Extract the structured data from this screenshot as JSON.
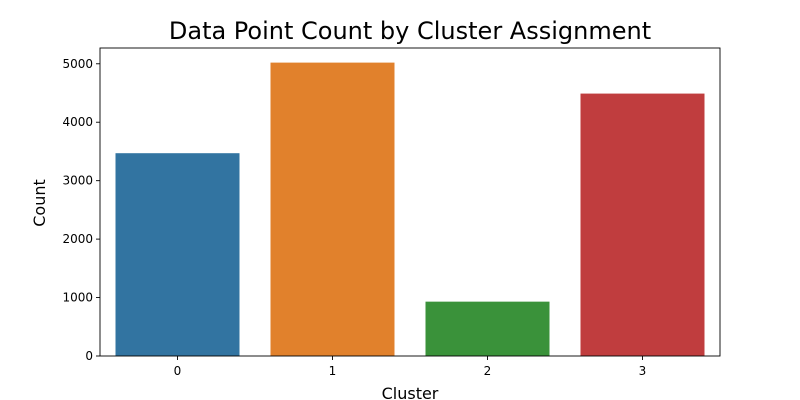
{
  "chart_data": {
    "type": "bar",
    "title": "Data Point Count by Cluster Assignment",
    "xlabel": "Cluster",
    "ylabel": "Count",
    "categories": [
      "0",
      "1",
      "2",
      "3"
    ],
    "values": [
      3470,
      5020,
      930,
      4490
    ],
    "colors": [
      "#3274a1",
      "#e1812c",
      "#3a923a",
      "#c03d3e"
    ],
    "ylim": [
      0,
      5270
    ],
    "yticks": [
      0,
      1000,
      2000,
      3000,
      4000,
      5000
    ],
    "grid": false,
    "legend": "none"
  }
}
